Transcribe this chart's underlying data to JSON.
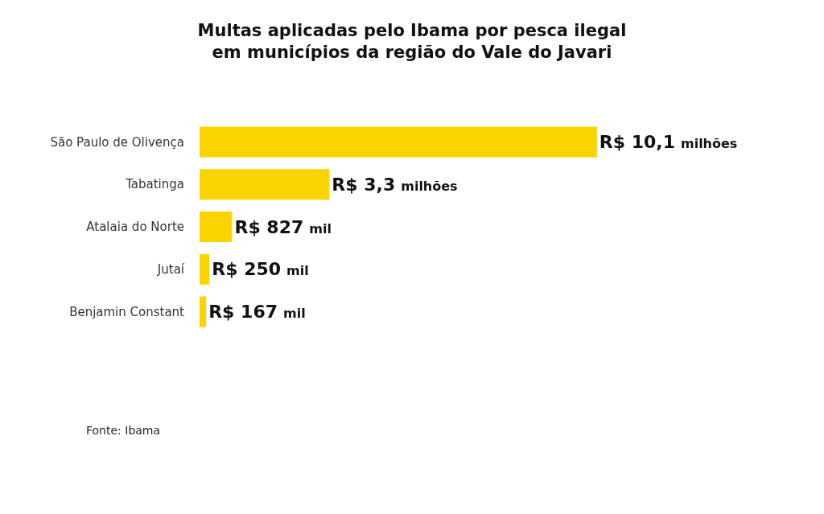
{
  "chart_data": {
    "type": "bar",
    "orientation": "horizontal",
    "title": "Multas aplicadas pelo Ibama por pesca ilegal\nem municípios da região do Vale do Javari",
    "categories": [
      "São Paulo de Olivença",
      "Tabatinga",
      "Atalaia do Norte",
      "Jutaí",
      "Benjamin Constant"
    ],
    "values": [
      10.1,
      3.3,
      0.827,
      0.25,
      0.167
    ],
    "value_labels": [
      "R$ 10,1 milhões",
      "R$ 3,3 milhões",
      "R$ 827 mil",
      "R$ 250 mil",
      "R$ 167 mil"
    ],
    "color": "#fad400",
    "annotations": [
      "Fonte: Ibama"
    ]
  }
}
